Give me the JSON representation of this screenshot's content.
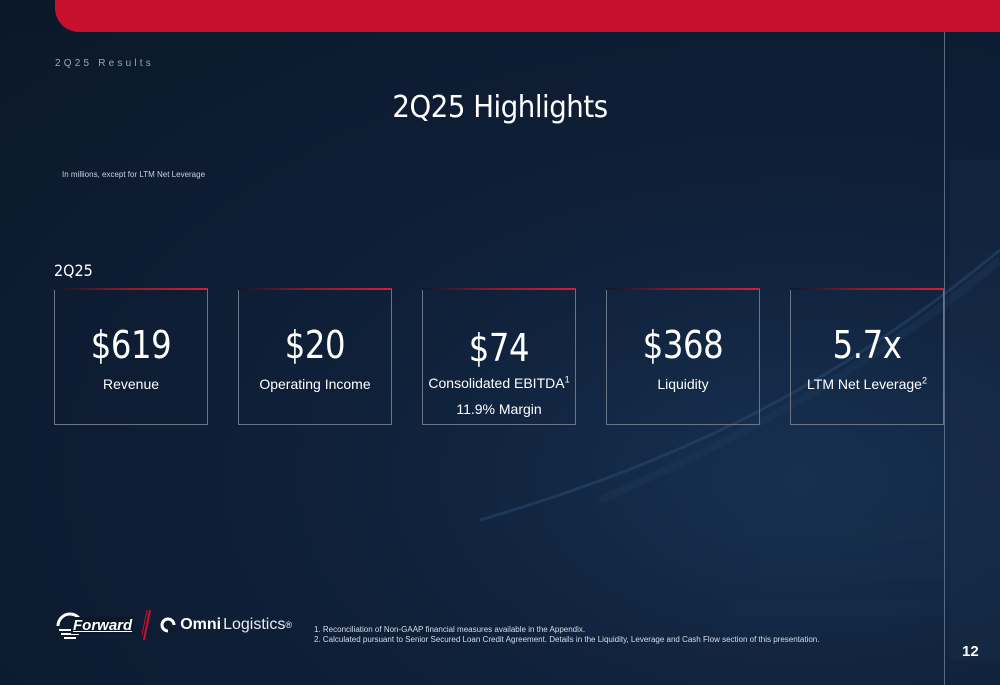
{
  "header": {
    "section": "2Q25 Results"
  },
  "title": "2Q25 Highlights",
  "note": "In millions, except for LTM Net Leverage",
  "period": "2Q25",
  "cards": [
    {
      "value": "$619",
      "label": "Revenue",
      "sup": "",
      "sub": ""
    },
    {
      "value": "$20",
      "label": "Operating Income",
      "sup": "",
      "sub": ""
    },
    {
      "value": "$74",
      "label": "Consolidated EBITDA",
      "sup": "1",
      "sub": "11.9% Margin"
    },
    {
      "value": "$368",
      "label": "Liquidity",
      "sup": "",
      "sub": ""
    },
    {
      "value": "5.7x",
      "label": "LTM Net Leverage",
      "sup": "2",
      "sub": ""
    }
  ],
  "logos": {
    "forward": "Forward",
    "omni_bold": "Omni",
    "omni_thin": "Logistics",
    "omni_mark": "®"
  },
  "footnotes": [
    "1.  Reconciliation of Non-GAAP financial measures available in the Appendix.",
    "2.  Calculated pursuant to Senior Secured Loan Credit Agreement. Details in the Liquidity, Leverage and Cash Flow section of this presentation."
  ],
  "page_number": "12",
  "colors": {
    "accent": "#c8102e",
    "background": "#0d1b2e",
    "text": "#ffffff"
  }
}
